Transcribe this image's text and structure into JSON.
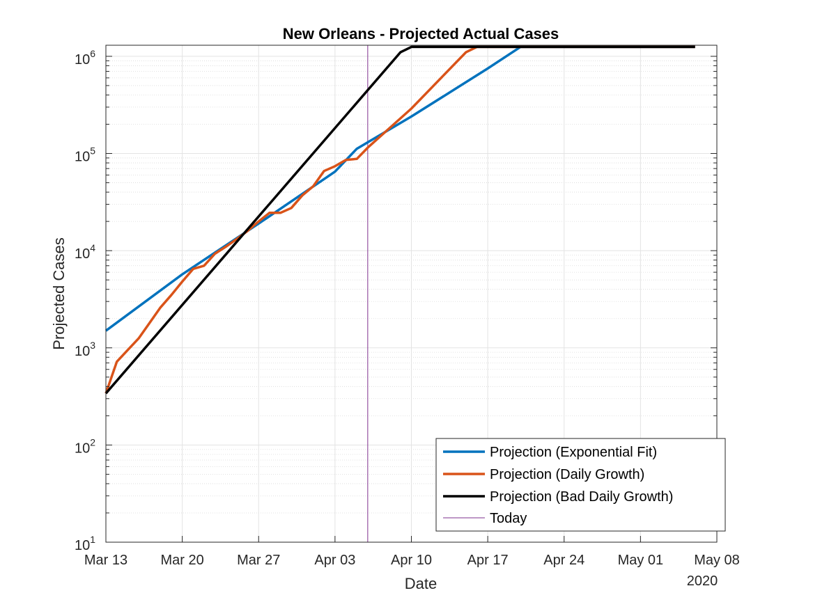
{
  "chart_data": {
    "type": "line",
    "title": "New Orleans - Projected Actual Cases",
    "xlabel": "Date",
    "ylabel": "Projected Cases",
    "year_label": "2020",
    "x_scale": "date",
    "y_scale": "log",
    "xlim": [
      "2020-03-13",
      "2020-05-08"
    ],
    "ylim": [
      10,
      1300000
    ],
    "x_ticks": [
      {
        "date": "2020-03-13",
        "label": "Mar 13"
      },
      {
        "date": "2020-03-20",
        "label": "Mar 20"
      },
      {
        "date": "2020-03-27",
        "label": "Mar 27"
      },
      {
        "date": "2020-04-03",
        "label": "Apr 03"
      },
      {
        "date": "2020-04-10",
        "label": "Apr 10"
      },
      {
        "date": "2020-04-17",
        "label": "Apr 17"
      },
      {
        "date": "2020-04-24",
        "label": "Apr 24"
      },
      {
        "date": "2020-05-01",
        "label": "May 01"
      },
      {
        "date": "2020-05-08",
        "label": "May 08"
      }
    ],
    "y_ticks": [
      {
        "value": 10,
        "base": "10",
        "exp": "1"
      },
      {
        "value": 100,
        "base": "10",
        "exp": "2"
      },
      {
        "value": 1000,
        "base": "10",
        "exp": "3"
      },
      {
        "value": 10000,
        "base": "10",
        "exp": "4"
      },
      {
        "value": 100000,
        "base": "10",
        "exp": "5"
      },
      {
        "value": 1000000,
        "base": "10",
        "exp": "6"
      }
    ],
    "grid": true,
    "minor_grid": true,
    "legend_position": "bottom-right",
    "series": [
      {
        "name": "Projection (Exponential Fit)",
        "color": "#0072BD",
        "points": [
          [
            "2020-03-13",
            1500
          ],
          [
            "2020-03-20",
            5700
          ],
          [
            "2020-03-27",
            19000
          ],
          [
            "2020-04-03",
            65000
          ],
          [
            "2020-04-05",
            112000
          ],
          [
            "2020-04-10",
            240000
          ],
          [
            "2020-04-17",
            750000
          ],
          [
            "2020-04-20",
            1250000
          ],
          [
            "2020-05-06",
            1250000
          ]
        ]
      },
      {
        "name": "Projection (Daily Growth)",
        "color": "#D95319",
        "points": [
          [
            "2020-03-13",
            340
          ],
          [
            "2020-03-14",
            720
          ],
          [
            "2020-03-15",
            950
          ],
          [
            "2020-03-16",
            1250
          ],
          [
            "2020-03-17",
            1800
          ],
          [
            "2020-03-18",
            2600
          ],
          [
            "2020-03-19",
            3500
          ],
          [
            "2020-03-20",
            4800
          ],
          [
            "2020-03-21",
            6500
          ],
          [
            "2020-03-22",
            7000
          ],
          [
            "2020-03-23",
            9300
          ],
          [
            "2020-03-24",
            11000
          ],
          [
            "2020-03-25",
            13200
          ],
          [
            "2020-03-26",
            16000
          ],
          [
            "2020-03-27",
            20000
          ],
          [
            "2020-03-28",
            24500
          ],
          [
            "2020-03-29",
            24500
          ],
          [
            "2020-03-30",
            27500
          ],
          [
            "2020-03-31",
            37000
          ],
          [
            "2020-04-01",
            46000
          ],
          [
            "2020-04-02",
            66000
          ],
          [
            "2020-04-03",
            74000
          ],
          [
            "2020-04-04",
            86000
          ],
          [
            "2020-04-05",
            88000
          ],
          [
            "2020-04-06",
            115000
          ],
          [
            "2020-04-10",
            290000
          ],
          [
            "2020-04-15",
            1100000
          ],
          [
            "2020-04-16",
            1250000
          ],
          [
            "2020-05-06",
            1250000
          ]
        ]
      },
      {
        "name": "Projection (Bad Daily Growth)",
        "color": "#000000",
        "points": [
          [
            "2020-03-13",
            340
          ],
          [
            "2020-04-09",
            1100000
          ],
          [
            "2020-04-10",
            1250000
          ],
          [
            "2020-05-06",
            1250000
          ]
        ]
      }
    ],
    "today": {
      "name": "Today",
      "date": "2020-04-06",
      "color": "#7E2F8E"
    }
  }
}
